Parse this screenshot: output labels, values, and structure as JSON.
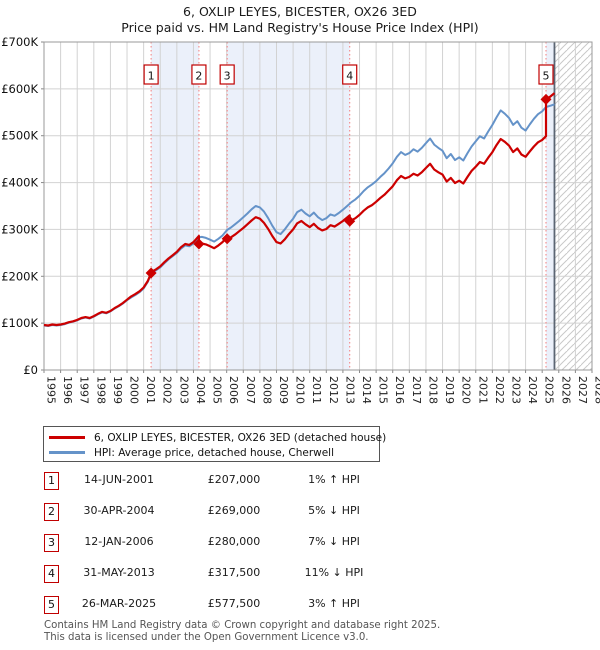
{
  "title": {
    "line1": "6, OXLIP LEYES, BICESTER, OX26 3ED",
    "line2": "Price paid vs. HM Land Registry's House Price Index (HPI)"
  },
  "colors": {
    "property_line": "#cc0000",
    "hpi_line": "#6593c9",
    "sale_dash": "#f47c7c",
    "marker_box_border": "#c00000",
    "ownership_band": "#ebf0fa",
    "grid": "#d2d2d2",
    "plot_border": "#9a9a9a",
    "now_line": "#5b6573",
    "hatch": "#c9c9c9",
    "footer_text": "#555555"
  },
  "chart_data": {
    "type": "line",
    "title": "Price paid vs. HM Land Registry's House Price Index (HPI)",
    "xlabel": "",
    "ylabel": "",
    "xlim": [
      1995,
      2028
    ],
    "ylim": [
      0,
      700
    ],
    "grid": true,
    "legend_position": "below",
    "x_ticks": [
      1995,
      1996,
      1997,
      1998,
      1999,
      2000,
      2001,
      2002,
      2003,
      2004,
      2005,
      2006,
      2007,
      2008,
      2009,
      2010,
      2011,
      2012,
      2013,
      2014,
      2015,
      2016,
      2017,
      2018,
      2019,
      2020,
      2021,
      2022,
      2023,
      2024,
      2025,
      2026,
      2027,
      2028
    ],
    "y_ticks": [
      "£0",
      "£100K",
      "£200K",
      "£300K",
      "£400K",
      "£500K",
      "£600K",
      "£700K"
    ],
    "y_tick_values": [
      0,
      100,
      200,
      300,
      400,
      500,
      600,
      700
    ],
    "units": "GBP thousands",
    "series": [
      {
        "name": "HPI: Average price, detached house, Cherwell",
        "color": "#6593c9",
        "width": 2,
        "points": [
          [
            1995.0,
            95
          ],
          [
            1995.25,
            94
          ],
          [
            1995.5,
            96
          ],
          [
            1995.75,
            95
          ],
          [
            1996.0,
            96
          ],
          [
            1996.25,
            98
          ],
          [
            1996.5,
            101
          ],
          [
            1996.75,
            103
          ],
          [
            1997.0,
            106
          ],
          [
            1997.25,
            110
          ],
          [
            1997.5,
            112
          ],
          [
            1997.75,
            110
          ],
          [
            1998.0,
            114
          ],
          [
            1998.25,
            119
          ],
          [
            1998.5,
            123
          ],
          [
            1998.75,
            121
          ],
          [
            1999.0,
            125
          ],
          [
            1999.25,
            131
          ],
          [
            1999.5,
            136
          ],
          [
            1999.75,
            142
          ],
          [
            2000.0,
            149
          ],
          [
            2000.25,
            155
          ],
          [
            2000.5,
            160
          ],
          [
            2000.75,
            166
          ],
          [
            2001.0,
            174
          ],
          [
            2001.25,
            188
          ],
          [
            2001.45,
            205
          ],
          [
            2001.5,
            208
          ],
          [
            2001.75,
            213
          ],
          [
            2002.0,
            219
          ],
          [
            2002.25,
            228
          ],
          [
            2002.5,
            236
          ],
          [
            2002.75,
            243
          ],
          [
            2003.0,
            250
          ],
          [
            2003.25,
            259
          ],
          [
            2003.5,
            266
          ],
          [
            2003.75,
            264
          ],
          [
            2004.0,
            270
          ],
          [
            2004.33,
            283
          ],
          [
            2004.5,
            284
          ],
          [
            2004.75,
            282
          ],
          [
            2005.0,
            278
          ],
          [
            2005.25,
            274
          ],
          [
            2005.5,
            280
          ],
          [
            2005.75,
            287
          ],
          [
            2006.03,
            299
          ],
          [
            2006.25,
            304
          ],
          [
            2006.5,
            311
          ],
          [
            2006.75,
            318
          ],
          [
            2007.0,
            326
          ],
          [
            2007.25,
            334
          ],
          [
            2007.5,
            343
          ],
          [
            2007.75,
            350
          ],
          [
            2008.0,
            347
          ],
          [
            2008.25,
            338
          ],
          [
            2008.5,
            324
          ],
          [
            2008.75,
            308
          ],
          [
            2009.0,
            294
          ],
          [
            2009.25,
            290
          ],
          [
            2009.5,
            300
          ],
          [
            2009.75,
            312
          ],
          [
            2010.0,
            323
          ],
          [
            2010.25,
            337
          ],
          [
            2010.5,
            342
          ],
          [
            2010.75,
            334
          ],
          [
            2011.0,
            328
          ],
          [
            2011.25,
            336
          ],
          [
            2011.5,
            326
          ],
          [
            2011.75,
            320
          ],
          [
            2012.0,
            324
          ],
          [
            2012.25,
            332
          ],
          [
            2012.5,
            329
          ],
          [
            2012.75,
            335
          ],
          [
            2013.0,
            342
          ],
          [
            2013.41,
            355
          ],
          [
            2013.5,
            358
          ],
          [
            2013.75,
            364
          ],
          [
            2014.0,
            372
          ],
          [
            2014.25,
            382
          ],
          [
            2014.5,
            390
          ],
          [
            2014.75,
            396
          ],
          [
            2015.0,
            403
          ],
          [
            2015.25,
            412
          ],
          [
            2015.5,
            420
          ],
          [
            2015.75,
            430
          ],
          [
            2016.0,
            441
          ],
          [
            2016.25,
            455
          ],
          [
            2016.5,
            465
          ],
          [
            2016.75,
            459
          ],
          [
            2017.0,
            463
          ],
          [
            2017.25,
            471
          ],
          [
            2017.5,
            466
          ],
          [
            2017.75,
            474
          ],
          [
            2018.0,
            484
          ],
          [
            2018.25,
            494
          ],
          [
            2018.5,
            481
          ],
          [
            2018.75,
            474
          ],
          [
            2019.0,
            468
          ],
          [
            2019.25,
            452
          ],
          [
            2019.5,
            461
          ],
          [
            2019.75,
            448
          ],
          [
            2020.0,
            454
          ],
          [
            2020.25,
            447
          ],
          [
            2020.5,
            463
          ],
          [
            2020.75,
            477
          ],
          [
            2021.0,
            488
          ],
          [
            2021.25,
            499
          ],
          [
            2021.5,
            494
          ],
          [
            2021.75,
            509
          ],
          [
            2022.0,
            523
          ],
          [
            2022.25,
            539
          ],
          [
            2022.5,
            554
          ],
          [
            2022.75,
            547
          ],
          [
            2023.0,
            538
          ],
          [
            2023.25,
            523
          ],
          [
            2023.5,
            531
          ],
          [
            2023.75,
            517
          ],
          [
            2024.0,
            511
          ],
          [
            2024.25,
            524
          ],
          [
            2024.5,
            536
          ],
          [
            2024.75,
            546
          ],
          [
            2025.0,
            552
          ],
          [
            2025.23,
            561
          ],
          [
            2025.5,
            564
          ],
          [
            2025.74,
            567
          ]
        ]
      },
      {
        "name": "6, OXLIP LEYES, BICESTER, OX26 3ED (detached house)",
        "color": "#cc0000",
        "width": 2.2,
        "points": [
          [
            1995.0,
            96
          ],
          [
            1995.25,
            95
          ],
          [
            1995.5,
            97
          ],
          [
            1995.75,
            96
          ],
          [
            1996.0,
            97
          ],
          [
            1996.25,
            99
          ],
          [
            1996.5,
            102
          ],
          [
            1996.75,
            104
          ],
          [
            1997.0,
            107
          ],
          [
            1997.25,
            111
          ],
          [
            1997.5,
            113
          ],
          [
            1997.75,
            111
          ],
          [
            1998.0,
            115
          ],
          [
            1998.25,
            120
          ],
          [
            1998.5,
            124
          ],
          [
            1998.75,
            122
          ],
          [
            1999.0,
            126
          ],
          [
            1999.25,
            132
          ],
          [
            1999.5,
            137
          ],
          [
            1999.75,
            143
          ],
          [
            2000.0,
            150
          ],
          [
            2000.25,
            157
          ],
          [
            2000.5,
            162
          ],
          [
            2000.75,
            168
          ],
          [
            2001.0,
            176
          ],
          [
            2001.25,
            190
          ],
          [
            2001.45,
            207
          ],
          [
            2001.5,
            210
          ],
          [
            2001.75,
            215
          ],
          [
            2002.0,
            221
          ],
          [
            2002.25,
            230
          ],
          [
            2002.5,
            238
          ],
          [
            2002.75,
            245
          ],
          [
            2003.0,
            252
          ],
          [
            2003.25,
            262
          ],
          [
            2003.5,
            269
          ],
          [
            2003.75,
            267
          ],
          [
            2004.0,
            273
          ],
          [
            2004.33,
            286
          ],
          [
            2004.33,
            269
          ],
          [
            2004.5,
            270
          ],
          [
            2004.75,
            268
          ],
          [
            2005.0,
            264
          ],
          [
            2005.25,
            260
          ],
          [
            2005.5,
            266
          ],
          [
            2005.75,
            273
          ],
          [
            2006.03,
            284
          ],
          [
            2006.03,
            280
          ],
          [
            2006.25,
            283
          ],
          [
            2006.5,
            289
          ],
          [
            2006.75,
            296
          ],
          [
            2007.0,
            303
          ],
          [
            2007.25,
            311
          ],
          [
            2007.5,
            319
          ],
          [
            2007.75,
            326
          ],
          [
            2008.0,
            323
          ],
          [
            2008.25,
            314
          ],
          [
            2008.5,
            301
          ],
          [
            2008.75,
            286
          ],
          [
            2009.0,
            273
          ],
          [
            2009.25,
            270
          ],
          [
            2009.5,
            279
          ],
          [
            2009.75,
            290
          ],
          [
            2010.0,
            300
          ],
          [
            2010.25,
            313
          ],
          [
            2010.5,
            318
          ],
          [
            2010.75,
            311
          ],
          [
            2011.0,
            305
          ],
          [
            2011.25,
            312
          ],
          [
            2011.5,
            303
          ],
          [
            2011.75,
            298
          ],
          [
            2012.0,
            301
          ],
          [
            2012.25,
            309
          ],
          [
            2012.5,
            306
          ],
          [
            2012.75,
            312
          ],
          [
            2013.0,
            318
          ],
          [
            2013.41,
            330
          ],
          [
            2013.41,
            317.5
          ],
          [
            2013.5,
            319
          ],
          [
            2013.75,
            324
          ],
          [
            2014.0,
            331
          ],
          [
            2014.25,
            340
          ],
          [
            2014.5,
            347
          ],
          [
            2014.75,
            352
          ],
          [
            2015.0,
            359
          ],
          [
            2015.25,
            367
          ],
          [
            2015.5,
            374
          ],
          [
            2015.75,
            383
          ],
          [
            2016.0,
            392
          ],
          [
            2016.25,
            405
          ],
          [
            2016.5,
            414
          ],
          [
            2016.75,
            409
          ],
          [
            2017.0,
            412
          ],
          [
            2017.25,
            419
          ],
          [
            2017.5,
            415
          ],
          [
            2017.75,
            422
          ],
          [
            2018.0,
            431
          ],
          [
            2018.25,
            440
          ],
          [
            2018.5,
            428
          ],
          [
            2018.75,
            422
          ],
          [
            2019.0,
            417
          ],
          [
            2019.25,
            402
          ],
          [
            2019.5,
            410
          ],
          [
            2019.75,
            399
          ],
          [
            2020.0,
            404
          ],
          [
            2020.25,
            398
          ],
          [
            2020.5,
            412
          ],
          [
            2020.75,
            425
          ],
          [
            2021.0,
            434
          ],
          [
            2021.25,
            444
          ],
          [
            2021.5,
            440
          ],
          [
            2021.75,
            453
          ],
          [
            2022.0,
            465
          ],
          [
            2022.25,
            480
          ],
          [
            2022.5,
            493
          ],
          [
            2022.75,
            487
          ],
          [
            2023.0,
            479
          ],
          [
            2023.25,
            465
          ],
          [
            2023.5,
            473
          ],
          [
            2023.75,
            460
          ],
          [
            2024.0,
            455
          ],
          [
            2024.25,
            466
          ],
          [
            2024.5,
            477
          ],
          [
            2024.75,
            486
          ],
          [
            2025.0,
            491
          ],
          [
            2025.23,
            499
          ],
          [
            2025.23,
            577.5
          ],
          [
            2025.5,
            584
          ],
          [
            2025.74,
            591
          ]
        ]
      }
    ],
    "sale_events": [
      {
        "num": "1",
        "t": 2001.45,
        "value": 207
      },
      {
        "num": "2",
        "t": 2004.33,
        "value": 269
      },
      {
        "num": "3",
        "t": 2006.03,
        "value": 280
      },
      {
        "num": "4",
        "t": 2013.41,
        "value": 317.5
      },
      {
        "num": "5",
        "t": 2025.23,
        "value": 577.5
      }
    ],
    "ownership_bands": [
      [
        2001.45,
        2004.33
      ],
      [
        2006.03,
        2013.41
      ],
      [
        2025.23,
        2025.74
      ]
    ],
    "now_line_t": 2025.74,
    "future_hatch": [
      2025.74,
      2028
    ]
  },
  "legend": {
    "items": [
      {
        "label": "6, OXLIP LEYES, BICESTER, OX26 3ED (detached house)",
        "color": "#cc0000"
      },
      {
        "label": "HPI: Average price, detached house, Cherwell",
        "color": "#6593c9"
      }
    ]
  },
  "table": {
    "rows": [
      {
        "num": "1",
        "date": "14-JUN-2001",
        "price": "£207,000",
        "hpi": "1% ↑ HPI"
      },
      {
        "num": "2",
        "date": "30-APR-2004",
        "price": "£269,000",
        "hpi": "5% ↓ HPI"
      },
      {
        "num": "3",
        "date": "12-JAN-2006",
        "price": "£280,000",
        "hpi": "7% ↓ HPI"
      },
      {
        "num": "4",
        "date": "31-MAY-2013",
        "price": "£317,500",
        "hpi": "11% ↓ HPI"
      },
      {
        "num": "5",
        "date": "26-MAR-2025",
        "price": "£577,500",
        "hpi": "3% ↑ HPI"
      }
    ]
  },
  "footer": {
    "line1": "Contains HM Land Registry data © Crown copyright and database right 2025.",
    "line2": "This data is licensed under the Open Government Licence v3.0."
  }
}
